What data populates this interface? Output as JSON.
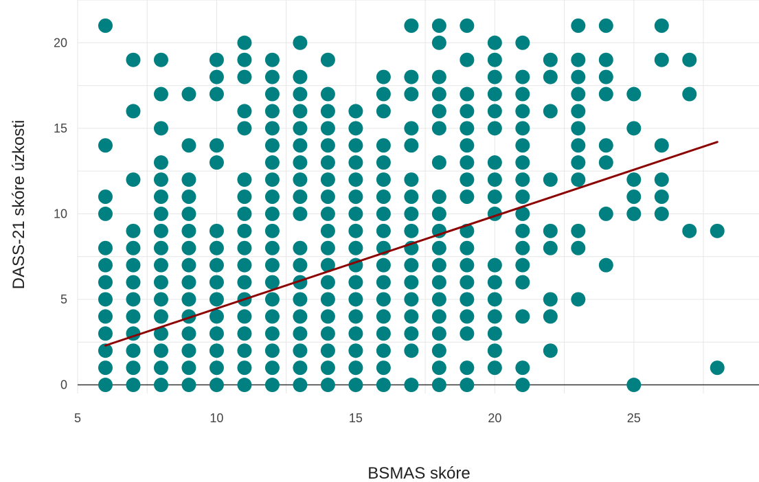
{
  "chart_data": {
    "type": "scatter",
    "title": "",
    "xlabel": "BSMAS skóre",
    "ylabel": "DASS-21 skóre úzkosti",
    "xlim": [
      5,
      29.5
    ],
    "ylim": [
      -0.5,
      22.5
    ],
    "x_ticks": [
      5,
      10,
      15,
      20,
      25
    ],
    "y_ticks": [
      0,
      5,
      10,
      15,
      20
    ],
    "grid": true,
    "legend": "none",
    "colors": {
      "points": "#008080",
      "trend": "#8b0000",
      "axis": "#333333"
    },
    "series": [
      {
        "points": [
          [
            6,
            0
          ],
          [
            6,
            1
          ],
          [
            6,
            2
          ],
          [
            6,
            3
          ],
          [
            6,
            4
          ],
          [
            6,
            5
          ],
          [
            6,
            6
          ],
          [
            6,
            7
          ],
          [
            6,
            8
          ],
          [
            6,
            10
          ],
          [
            6,
            11
          ],
          [
            6,
            14
          ],
          [
            6,
            21
          ],
          [
            7,
            0
          ],
          [
            7,
            1
          ],
          [
            7,
            2
          ],
          [
            7,
            3
          ],
          [
            7,
            4
          ],
          [
            7,
            5
          ],
          [
            7,
            6
          ],
          [
            7,
            7
          ],
          [
            7,
            8
          ],
          [
            7,
            9
          ],
          [
            7,
            12
          ],
          [
            7,
            16
          ],
          [
            7,
            19
          ],
          [
            8,
            0
          ],
          [
            8,
            1
          ],
          [
            8,
            2
          ],
          [
            8,
            3
          ],
          [
            8,
            4
          ],
          [
            8,
            5
          ],
          [
            8,
            6
          ],
          [
            8,
            7
          ],
          [
            8,
            8
          ],
          [
            8,
            9
          ],
          [
            8,
            10
          ],
          [
            8,
            11
          ],
          [
            8,
            12
          ],
          [
            8,
            13
          ],
          [
            8,
            15
          ],
          [
            8,
            17
          ],
          [
            8,
            19
          ],
          [
            9,
            0
          ],
          [
            9,
            1
          ],
          [
            9,
            2
          ],
          [
            9,
            3
          ],
          [
            9,
            4
          ],
          [
            9,
            5
          ],
          [
            9,
            6
          ],
          [
            9,
            7
          ],
          [
            9,
            8
          ],
          [
            9,
            9
          ],
          [
            9,
            10
          ],
          [
            9,
            11
          ],
          [
            9,
            12
          ],
          [
            9,
            14
          ],
          [
            9,
            17
          ],
          [
            10,
            0
          ],
          [
            10,
            1
          ],
          [
            10,
            2
          ],
          [
            10,
            3
          ],
          [
            10,
            4
          ],
          [
            10,
            5
          ],
          [
            10,
            6
          ],
          [
            10,
            7
          ],
          [
            10,
            8
          ],
          [
            10,
            9
          ],
          [
            10,
            13
          ],
          [
            10,
            14
          ],
          [
            10,
            17
          ],
          [
            10,
            18
          ],
          [
            10,
            19
          ],
          [
            11,
            0
          ],
          [
            11,
            1
          ],
          [
            11,
            2
          ],
          [
            11,
            3
          ],
          [
            11,
            4
          ],
          [
            11,
            5
          ],
          [
            11,
            6
          ],
          [
            11,
            7
          ],
          [
            11,
            8
          ],
          [
            11,
            9
          ],
          [
            11,
            10
          ],
          [
            11,
            11
          ],
          [
            11,
            12
          ],
          [
            11,
            15
          ],
          [
            11,
            16
          ],
          [
            11,
            18
          ],
          [
            11,
            19
          ],
          [
            11,
            20
          ],
          [
            12,
            0
          ],
          [
            12,
            1
          ],
          [
            12,
            2
          ],
          [
            12,
            3
          ],
          [
            12,
            4
          ],
          [
            12,
            5
          ],
          [
            12,
            6
          ],
          [
            12,
            7
          ],
          [
            12,
            8
          ],
          [
            12,
            9
          ],
          [
            12,
            10
          ],
          [
            12,
            11
          ],
          [
            12,
            12
          ],
          [
            12,
            13
          ],
          [
            12,
            14
          ],
          [
            12,
            15
          ],
          [
            12,
            16
          ],
          [
            12,
            17
          ],
          [
            12,
            18
          ],
          [
            12,
            19
          ],
          [
            13,
            0
          ],
          [
            13,
            1
          ],
          [
            13,
            2
          ],
          [
            13,
            3
          ],
          [
            13,
            4
          ],
          [
            13,
            5
          ],
          [
            13,
            6
          ],
          [
            13,
            7
          ],
          [
            13,
            8
          ],
          [
            13,
            10
          ],
          [
            13,
            11
          ],
          [
            13,
            12
          ],
          [
            13,
            13
          ],
          [
            13,
            14
          ],
          [
            13,
            15
          ],
          [
            13,
            16
          ],
          [
            13,
            17
          ],
          [
            13,
            18
          ],
          [
            13,
            20
          ],
          [
            14,
            0
          ],
          [
            14,
            1
          ],
          [
            14,
            2
          ],
          [
            14,
            3
          ],
          [
            14,
            4
          ],
          [
            14,
            5
          ],
          [
            14,
            6
          ],
          [
            14,
            7
          ],
          [
            14,
            8
          ],
          [
            14,
            9
          ],
          [
            14,
            10
          ],
          [
            14,
            11
          ],
          [
            14,
            12
          ],
          [
            14,
            13
          ],
          [
            14,
            14
          ],
          [
            14,
            15
          ],
          [
            14,
            16
          ],
          [
            14,
            17
          ],
          [
            14,
            19
          ],
          [
            15,
            0
          ],
          [
            15,
            1
          ],
          [
            15,
            2
          ],
          [
            15,
            3
          ],
          [
            15,
            4
          ],
          [
            15,
            5
          ],
          [
            15,
            6
          ],
          [
            15,
            7
          ],
          [
            15,
            8
          ],
          [
            15,
            9
          ],
          [
            15,
            10
          ],
          [
            15,
            11
          ],
          [
            15,
            12
          ],
          [
            15,
            13
          ],
          [
            15,
            14
          ],
          [
            15,
            15
          ],
          [
            15,
            16
          ],
          [
            16,
            0
          ],
          [
            16,
            1
          ],
          [
            16,
            2
          ],
          [
            16,
            3
          ],
          [
            16,
            4
          ],
          [
            16,
            5
          ],
          [
            16,
            6
          ],
          [
            16,
            7
          ],
          [
            16,
            8
          ],
          [
            16,
            9
          ],
          [
            16,
            10
          ],
          [
            16,
            11
          ],
          [
            16,
            12
          ],
          [
            16,
            13
          ],
          [
            16,
            14
          ],
          [
            16,
            16
          ],
          [
            16,
            17
          ],
          [
            16,
            18
          ],
          [
            17,
            0
          ],
          [
            17,
            2
          ],
          [
            17,
            3
          ],
          [
            17,
            4
          ],
          [
            17,
            5
          ],
          [
            17,
            6
          ],
          [
            17,
            7
          ],
          [
            17,
            8
          ],
          [
            17,
            9
          ],
          [
            17,
            10
          ],
          [
            17,
            11
          ],
          [
            17,
            12
          ],
          [
            17,
            14
          ],
          [
            17,
            15
          ],
          [
            17,
            17
          ],
          [
            17,
            18
          ],
          [
            17,
            21
          ],
          [
            18,
            0
          ],
          [
            18,
            1
          ],
          [
            18,
            2
          ],
          [
            18,
            3
          ],
          [
            18,
            4
          ],
          [
            18,
            5
          ],
          [
            18,
            6
          ],
          [
            18,
            7
          ],
          [
            18,
            8
          ],
          [
            18,
            9
          ],
          [
            18,
            10
          ],
          [
            18,
            11
          ],
          [
            18,
            13
          ],
          [
            18,
            15
          ],
          [
            18,
            16
          ],
          [
            18,
            17
          ],
          [
            18,
            18
          ],
          [
            18,
            20
          ],
          [
            18,
            21
          ],
          [
            19,
            0
          ],
          [
            19,
            1
          ],
          [
            19,
            3
          ],
          [
            19,
            4
          ],
          [
            19,
            5
          ],
          [
            19,
            6
          ],
          [
            19,
            7
          ],
          [
            19,
            8
          ],
          [
            19,
            9
          ],
          [
            19,
            11
          ],
          [
            19,
            12
          ],
          [
            19,
            13
          ],
          [
            19,
            14
          ],
          [
            19,
            15
          ],
          [
            19,
            16
          ],
          [
            19,
            17
          ],
          [
            19,
            19
          ],
          [
            19,
            21
          ],
          [
            20,
            1
          ],
          [
            20,
            2
          ],
          [
            20,
            3
          ],
          [
            20,
            4
          ],
          [
            20,
            5
          ],
          [
            20,
            6
          ],
          [
            20,
            7
          ],
          [
            20,
            10
          ],
          [
            20,
            11
          ],
          [
            20,
            12
          ],
          [
            20,
            13
          ],
          [
            20,
            15
          ],
          [
            20,
            16
          ],
          [
            20,
            17
          ],
          [
            20,
            18
          ],
          [
            20,
            19
          ],
          [
            20,
            20
          ],
          [
            21,
            0
          ],
          [
            21,
            1
          ],
          [
            21,
            4
          ],
          [
            21,
            6
          ],
          [
            21,
            7
          ],
          [
            21,
            8
          ],
          [
            21,
            9
          ],
          [
            21,
            10
          ],
          [
            21,
            11
          ],
          [
            21,
            12
          ],
          [
            21,
            13
          ],
          [
            21,
            14
          ],
          [
            21,
            15
          ],
          [
            21,
            16
          ],
          [
            21,
            17
          ],
          [
            21,
            18
          ],
          [
            21,
            20
          ],
          [
            22,
            2
          ],
          [
            22,
            4
          ],
          [
            22,
            5
          ],
          [
            22,
            8
          ],
          [
            22,
            9
          ],
          [
            22,
            12
          ],
          [
            22,
            16
          ],
          [
            22,
            18
          ],
          [
            22,
            19
          ],
          [
            23,
            5
          ],
          [
            23,
            8
          ],
          [
            23,
            9
          ],
          [
            23,
            12
          ],
          [
            23,
            13
          ],
          [
            23,
            14
          ],
          [
            23,
            15
          ],
          [
            23,
            16
          ],
          [
            23,
            17
          ],
          [
            23,
            18
          ],
          [
            23,
            19
          ],
          [
            23,
            21
          ],
          [
            24,
            7
          ],
          [
            24,
            10
          ],
          [
            24,
            13
          ],
          [
            24,
            14
          ],
          [
            24,
            17
          ],
          [
            24,
            18
          ],
          [
            24,
            19
          ],
          [
            24,
            21
          ],
          [
            25,
            0
          ],
          [
            25,
            10
          ],
          [
            25,
            11
          ],
          [
            25,
            12
          ],
          [
            25,
            15
          ],
          [
            25,
            17
          ],
          [
            26,
            10
          ],
          [
            26,
            11
          ],
          [
            26,
            12
          ],
          [
            26,
            14
          ],
          [
            26,
            19
          ],
          [
            26,
            21
          ],
          [
            27,
            9
          ],
          [
            27,
            17
          ],
          [
            27,
            19
          ],
          [
            28,
            1
          ],
          [
            28,
            9
          ]
        ]
      }
    ],
    "trend_line": {
      "x": [
        6,
        28
      ],
      "y": [
        2.3,
        14.2
      ]
    }
  }
}
